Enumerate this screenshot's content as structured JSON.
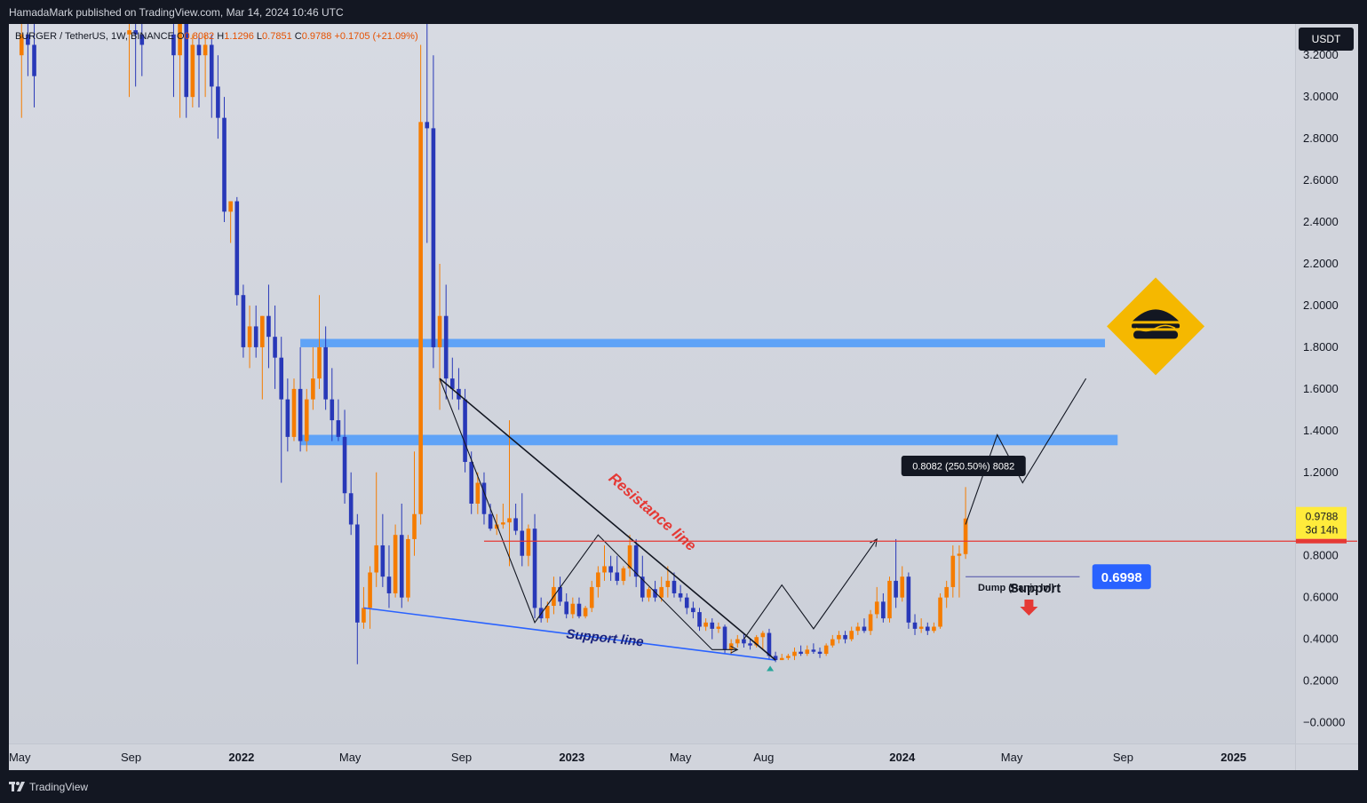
{
  "header": {
    "published_text": "HamadaMark published on TradingView.com, Mar 14, 2024 10:46 UTC"
  },
  "legend": {
    "symbol": "BURGER / TetherUS, 1W, BINANCE",
    "open_label": "O",
    "open": "0.8082",
    "high_label": "H",
    "high": "1.1296",
    "low_label": "L",
    "low": "0.7851",
    "close_label": "C",
    "close": "0.9788",
    "change": "+0.1705 (+21.09%)"
  },
  "currency_button": "USDT",
  "footer": {
    "brand": "TradingView"
  },
  "colors": {
    "bull": "#f57c00",
    "bear": "#2838b8",
    "zone": "#5fa3f7",
    "resistance": "#e53935",
    "support": "#2962ff",
    "logo": "#f5b800"
  },
  "icons": [
    "tradingview-logo-icon",
    "burger-logo-icon",
    "down-arrow-icon",
    "triangle-marker-icon"
  ],
  "chart_data": {
    "type": "candlestick",
    "y_axis": {
      "min": -0.1,
      "max": 3.35,
      "ticks": [
        "3.2000",
        "3.0000",
        "2.8000",
        "2.6000",
        "2.4000",
        "2.2000",
        "2.0000",
        "1.8000",
        "1.6000",
        "1.4000",
        "1.2000",
        "1.0000",
        "0.8000",
        "0.6000",
        "0.4000",
        "0.2000",
        "−0.0000"
      ]
    },
    "x_axis": {
      "start": "2021-04-19",
      "end": "2025-03-10",
      "labels": [
        {
          "date": "2021-05-01",
          "text": "May",
          "bold": false
        },
        {
          "date": "2021-09-01",
          "text": "Sep",
          "bold": false
        },
        {
          "date": "2022-01-01",
          "text": "2022",
          "bold": true
        },
        {
          "date": "2022-05-01",
          "text": "May",
          "bold": false
        },
        {
          "date": "2022-09-01",
          "text": "Sep",
          "bold": false
        },
        {
          "date": "2023-01-01",
          "text": "2023",
          "bold": true
        },
        {
          "date": "2023-05-01",
          "text": "May",
          "bold": false
        },
        {
          "date": "2023-08-01",
          "text": "Aug",
          "bold": false
        },
        {
          "date": "2024-01-01",
          "text": "2024",
          "bold": true
        },
        {
          "date": "2024-05-01",
          "text": "May",
          "bold": false
        },
        {
          "date": "2024-09-01",
          "text": "Sep",
          "bold": false
        },
        {
          "date": "2025-01-01",
          "text": "2025",
          "bold": true
        }
      ]
    },
    "candles": [
      [
        "2021-05-03",
        3.2,
        3.4,
        2.9,
        3.3
      ],
      [
        "2021-05-10",
        3.3,
        3.4,
        3.1,
        3.25
      ],
      [
        "2021-05-17",
        3.25,
        3.4,
        2.95,
        3.1
      ],
      [
        "2021-08-30",
        3.3,
        3.4,
        3.0,
        3.32
      ],
      [
        "2021-09-06",
        3.32,
        3.4,
        3.05,
        3.3
      ],
      [
        "2021-09-13",
        3.3,
        3.4,
        3.1,
        3.25
      ],
      [
        "2021-10-18",
        3.3,
        3.45,
        3.0,
        3.2
      ],
      [
        "2021-10-25",
        3.2,
        3.4,
        2.9,
        3.35
      ],
      [
        "2021-11-01",
        3.35,
        3.4,
        2.9,
        3.0
      ],
      [
        "2021-11-08",
        3.0,
        3.3,
        2.95,
        3.25
      ],
      [
        "2021-11-15",
        3.25,
        3.3,
        2.95,
        3.2
      ],
      [
        "2021-11-22",
        3.2,
        3.3,
        3.0,
        3.25
      ],
      [
        "2021-11-29",
        3.25,
        3.3,
        2.9,
        3.05
      ],
      [
        "2021-12-06",
        3.05,
        3.2,
        2.8,
        2.9
      ],
      [
        "2021-12-13",
        2.9,
        3.0,
        2.4,
        2.45
      ],
      [
        "2021-12-20",
        2.45,
        2.5,
        2.3,
        2.5
      ],
      [
        "2021-12-27",
        2.5,
        2.52,
        2.0,
        2.05
      ],
      [
        "2022-01-03",
        2.05,
        2.1,
        1.75,
        1.8
      ],
      [
        "2022-01-10",
        1.8,
        2.0,
        1.7,
        1.9
      ],
      [
        "2022-01-17",
        1.9,
        2.0,
        1.75,
        1.8
      ],
      [
        "2022-01-24",
        1.8,
        1.95,
        1.55,
        1.95
      ],
      [
        "2022-01-31",
        1.95,
        2.1,
        1.7,
        1.85
      ],
      [
        "2022-02-07",
        1.85,
        2.0,
        1.6,
        1.75
      ],
      [
        "2022-02-14",
        1.75,
        1.85,
        1.15,
        1.55
      ],
      [
        "2022-02-21",
        1.55,
        1.65,
        1.3,
        1.37
      ],
      [
        "2022-02-28",
        1.37,
        1.65,
        1.35,
        1.6
      ],
      [
        "2022-03-07",
        1.6,
        1.8,
        1.3,
        1.35
      ],
      [
        "2022-03-14",
        1.35,
        1.6,
        1.3,
        1.55
      ],
      [
        "2022-03-21",
        1.55,
        1.8,
        1.5,
        1.65
      ],
      [
        "2022-03-28",
        1.65,
        2.05,
        1.6,
        1.8
      ],
      [
        "2022-04-04",
        1.8,
        1.9,
        1.5,
        1.55
      ],
      [
        "2022-04-11",
        1.55,
        1.7,
        1.35,
        1.45
      ],
      [
        "2022-04-18",
        1.45,
        1.55,
        1.35,
        1.37
      ],
      [
        "2022-04-25",
        1.37,
        1.5,
        1.05,
        1.1
      ],
      [
        "2022-05-02",
        1.1,
        1.2,
        0.9,
        0.95
      ],
      [
        "2022-05-09",
        0.95,
        1.0,
        0.28,
        0.48
      ],
      [
        "2022-05-16",
        0.48,
        0.65,
        0.45,
        0.55
      ],
      [
        "2022-05-23",
        0.55,
        0.75,
        0.45,
        0.72
      ],
      [
        "2022-05-30",
        0.72,
        1.2,
        0.65,
        0.85
      ],
      [
        "2022-06-06",
        0.85,
        1.0,
        0.65,
        0.7
      ],
      [
        "2022-06-13",
        0.7,
        0.85,
        0.55,
        0.62
      ],
      [
        "2022-06-20",
        0.62,
        0.95,
        0.6,
        0.9
      ],
      [
        "2022-06-27",
        0.9,
        1.05,
        0.55,
        0.6
      ],
      [
        "2022-07-04",
        0.6,
        0.9,
        0.58,
        0.88
      ],
      [
        "2022-07-11",
        0.88,
        1.3,
        0.8,
        1.0
      ],
      [
        "2022-07-18",
        1.0,
        3.25,
        0.95,
        2.88
      ],
      [
        "2022-07-25",
        2.88,
        3.35,
        2.3,
        2.85
      ],
      [
        "2022-08-01",
        2.85,
        3.2,
        1.7,
        1.8
      ],
      [
        "2022-08-08",
        1.8,
        2.2,
        1.5,
        1.95
      ],
      [
        "2022-08-15",
        1.95,
        2.1,
        1.55,
        1.65
      ],
      [
        "2022-08-22",
        1.65,
        1.75,
        1.55,
        1.6
      ],
      [
        "2022-08-29",
        1.6,
        1.7,
        1.5,
        1.55
      ],
      [
        "2022-09-05",
        1.55,
        1.6,
        1.2,
        1.25
      ],
      [
        "2022-09-12",
        1.25,
        1.3,
        1.0,
        1.05
      ],
      [
        "2022-09-19",
        1.05,
        1.2,
        1.0,
        1.15
      ],
      [
        "2022-09-26",
        1.15,
        1.2,
        0.95,
        1.0
      ],
      [
        "2022-10-03",
        1.0,
        1.05,
        0.92,
        0.93
      ],
      [
        "2022-10-10",
        0.93,
        1.0,
        0.9,
        0.95
      ],
      [
        "2022-10-17",
        0.95,
        1.05,
        0.93,
        0.96
      ],
      [
        "2022-10-24",
        0.96,
        1.45,
        0.75,
        0.98
      ],
      [
        "2022-10-31",
        0.98,
        1.05,
        0.9,
        0.92
      ],
      [
        "2022-11-07",
        0.92,
        1.1,
        0.75,
        0.8
      ],
      [
        "2022-11-14",
        0.8,
        0.95,
        0.75,
        0.93
      ],
      [
        "2022-11-21",
        0.93,
        1.0,
        0.5,
        0.55
      ],
      [
        "2022-11-28",
        0.55,
        0.6,
        0.48,
        0.5
      ],
      [
        "2022-12-05",
        0.5,
        0.58,
        0.48,
        0.56
      ],
      [
        "2022-12-12",
        0.56,
        0.7,
        0.52,
        0.65
      ],
      [
        "2022-12-19",
        0.65,
        0.7,
        0.56,
        0.58
      ],
      [
        "2022-12-26",
        0.58,
        0.62,
        0.5,
        0.52
      ],
      [
        "2023-01-02",
        0.52,
        0.6,
        0.5,
        0.57
      ],
      [
        "2023-01-09",
        0.57,
        0.6,
        0.5,
        0.51
      ],
      [
        "2023-01-16",
        0.51,
        0.56,
        0.5,
        0.55
      ],
      [
        "2023-01-23",
        0.55,
        0.68,
        0.53,
        0.65
      ],
      [
        "2023-01-30",
        0.65,
        0.75,
        0.6,
        0.72
      ],
      [
        "2023-02-06",
        0.72,
        0.85,
        0.68,
        0.75
      ],
      [
        "2023-02-13",
        0.75,
        0.8,
        0.68,
        0.72
      ],
      [
        "2023-02-20",
        0.72,
        0.8,
        0.66,
        0.68
      ],
      [
        "2023-02-27",
        0.68,
        0.75,
        0.66,
        0.74
      ],
      [
        "2023-03-06",
        0.74,
        0.9,
        0.7,
        0.85
      ],
      [
        "2023-03-13",
        0.85,
        0.88,
        0.65,
        0.7
      ],
      [
        "2023-03-20",
        0.7,
        0.8,
        0.58,
        0.6
      ],
      [
        "2023-03-27",
        0.6,
        0.65,
        0.58,
        0.64
      ],
      [
        "2023-04-03",
        0.64,
        0.68,
        0.58,
        0.6
      ],
      [
        "2023-04-10",
        0.6,
        0.7,
        0.58,
        0.65
      ],
      [
        "2023-04-17",
        0.65,
        0.75,
        0.6,
        0.68
      ],
      [
        "2023-04-24",
        0.68,
        0.72,
        0.6,
        0.62
      ],
      [
        "2023-05-01",
        0.62,
        0.66,
        0.58,
        0.6
      ],
      [
        "2023-05-08",
        0.6,
        0.62,
        0.52,
        0.55
      ],
      [
        "2023-05-15",
        0.55,
        0.58,
        0.5,
        0.53
      ],
      [
        "2023-05-22",
        0.53,
        0.55,
        0.44,
        0.46
      ],
      [
        "2023-05-29",
        0.46,
        0.5,
        0.44,
        0.48
      ],
      [
        "2023-06-05",
        0.48,
        0.5,
        0.4,
        0.45
      ],
      [
        "2023-06-12",
        0.45,
        0.48,
        0.43,
        0.46
      ],
      [
        "2023-06-19",
        0.46,
        0.47,
        0.33,
        0.35
      ],
      [
        "2023-06-26",
        0.35,
        0.4,
        0.33,
        0.38
      ],
      [
        "2023-07-03",
        0.38,
        0.42,
        0.36,
        0.4
      ],
      [
        "2023-07-10",
        0.4,
        0.43,
        0.36,
        0.38
      ],
      [
        "2023-07-17",
        0.38,
        0.4,
        0.35,
        0.37
      ],
      [
        "2023-07-24",
        0.37,
        0.42,
        0.36,
        0.41
      ],
      [
        "2023-07-31",
        0.41,
        0.44,
        0.35,
        0.43
      ],
      [
        "2023-08-07",
        0.43,
        0.45,
        0.3,
        0.32
      ],
      [
        "2023-08-14",
        0.32,
        0.34,
        0.29,
        0.3
      ],
      [
        "2023-08-21",
        0.3,
        0.33,
        0.3,
        0.31
      ],
      [
        "2023-08-28",
        0.31,
        0.33,
        0.3,
        0.32
      ],
      [
        "2023-09-04",
        0.32,
        0.36,
        0.3,
        0.34
      ],
      [
        "2023-09-11",
        0.34,
        0.37,
        0.32,
        0.33
      ],
      [
        "2023-09-18",
        0.33,
        0.37,
        0.32,
        0.35
      ],
      [
        "2023-09-25",
        0.35,
        0.38,
        0.33,
        0.34
      ],
      [
        "2023-10-02",
        0.34,
        0.36,
        0.31,
        0.33
      ],
      [
        "2023-10-09",
        0.33,
        0.38,
        0.32,
        0.37
      ],
      [
        "2023-10-16",
        0.37,
        0.42,
        0.36,
        0.4
      ],
      [
        "2023-10-23",
        0.4,
        0.44,
        0.38,
        0.42
      ],
      [
        "2023-10-30",
        0.42,
        0.44,
        0.38,
        0.4
      ],
      [
        "2023-11-06",
        0.4,
        0.46,
        0.39,
        0.44
      ],
      [
        "2023-11-13",
        0.44,
        0.48,
        0.42,
        0.46
      ],
      [
        "2023-11-20",
        0.46,
        0.5,
        0.43,
        0.44
      ],
      [
        "2023-11-27",
        0.44,
        0.54,
        0.42,
        0.52
      ],
      [
        "2023-12-04",
        0.52,
        0.65,
        0.5,
        0.58
      ],
      [
        "2023-12-11",
        0.58,
        0.62,
        0.48,
        0.5
      ],
      [
        "2023-12-18",
        0.5,
        0.7,
        0.48,
        0.68
      ],
      [
        "2023-12-25",
        0.68,
        0.88,
        0.55,
        0.6
      ],
      [
        "2024-01-01",
        0.6,
        0.75,
        0.58,
        0.7
      ],
      [
        "2024-01-08",
        0.7,
        0.72,
        0.45,
        0.48
      ],
      [
        "2024-01-15",
        0.48,
        0.52,
        0.42,
        0.45
      ],
      [
        "2024-01-22",
        0.45,
        0.5,
        0.43,
        0.46
      ],
      [
        "2024-01-29",
        0.46,
        0.48,
        0.42,
        0.44
      ],
      [
        "2024-02-05",
        0.44,
        0.48,
        0.43,
        0.46
      ],
      [
        "2024-02-12",
        0.46,
        0.62,
        0.45,
        0.6
      ],
      [
        "2024-02-19",
        0.6,
        0.68,
        0.55,
        0.65
      ],
      [
        "2024-02-26",
        0.65,
        0.85,
        0.6,
        0.8
      ],
      [
        "2024-03-04",
        0.8,
        0.85,
        0.6,
        0.81
      ],
      [
        "2024-03-11",
        0.8082,
        1.1296,
        0.7851,
        0.9788
      ]
    ],
    "zones": [
      {
        "from": "2022-03-07",
        "to": "2024-08-12",
        "y_low": 1.8,
        "y_high": 1.84
      },
      {
        "from": "2022-03-07",
        "to": "2024-08-26",
        "y_low": 1.33,
        "y_high": 1.38
      }
    ],
    "resistance_level": {
      "value": 0.87,
      "from": "2022-09-26",
      "label": "Resistance line"
    },
    "support_level": {
      "value": 0.6998,
      "from": "2024-03-11",
      "to": "2024-07-15",
      "price_tag": "0.6998",
      "label": "Support"
    },
    "support_line": {
      "points": [
        [
          "2022-05-16",
          0.55
        ],
        [
          "2023-08-14",
          0.3
        ]
      ],
      "label": "Support line"
    },
    "resistance_trend": {
      "points": [
        [
          "2022-08-08",
          1.65
        ],
        [
          "2023-08-14",
          0.3
        ]
      ]
    },
    "zigzag_1": [
      [
        "2022-08-08",
        1.65
      ],
      [
        "2022-11-21",
        0.48
      ],
      [
        "2023-01-30",
        0.9
      ],
      [
        "2023-06-05",
        0.35
      ],
      [
        "2023-07-03",
        0.35
      ]
    ],
    "zigzag_2": [
      [
        "2023-07-10",
        0.4
      ],
      [
        "2023-08-21",
        0.66
      ],
      [
        "2023-09-25",
        0.45
      ],
      [
        "2023-12-04",
        0.88
      ]
    ],
    "projection": [
      [
        "2024-03-11",
        0.95
      ],
      [
        "2024-04-15",
        1.38
      ],
      [
        "2024-05-13",
        1.15
      ],
      [
        "2024-06-17",
        1.4
      ],
      [
        "2024-07-22",
        1.65
      ]
    ],
    "measure_label": "0.8082 (250.50%) 8082",
    "last_price": {
      "value": "0.9788",
      "countdown": "3d 14h"
    },
    "annotation": "Dump (Panic lvl)"
  }
}
